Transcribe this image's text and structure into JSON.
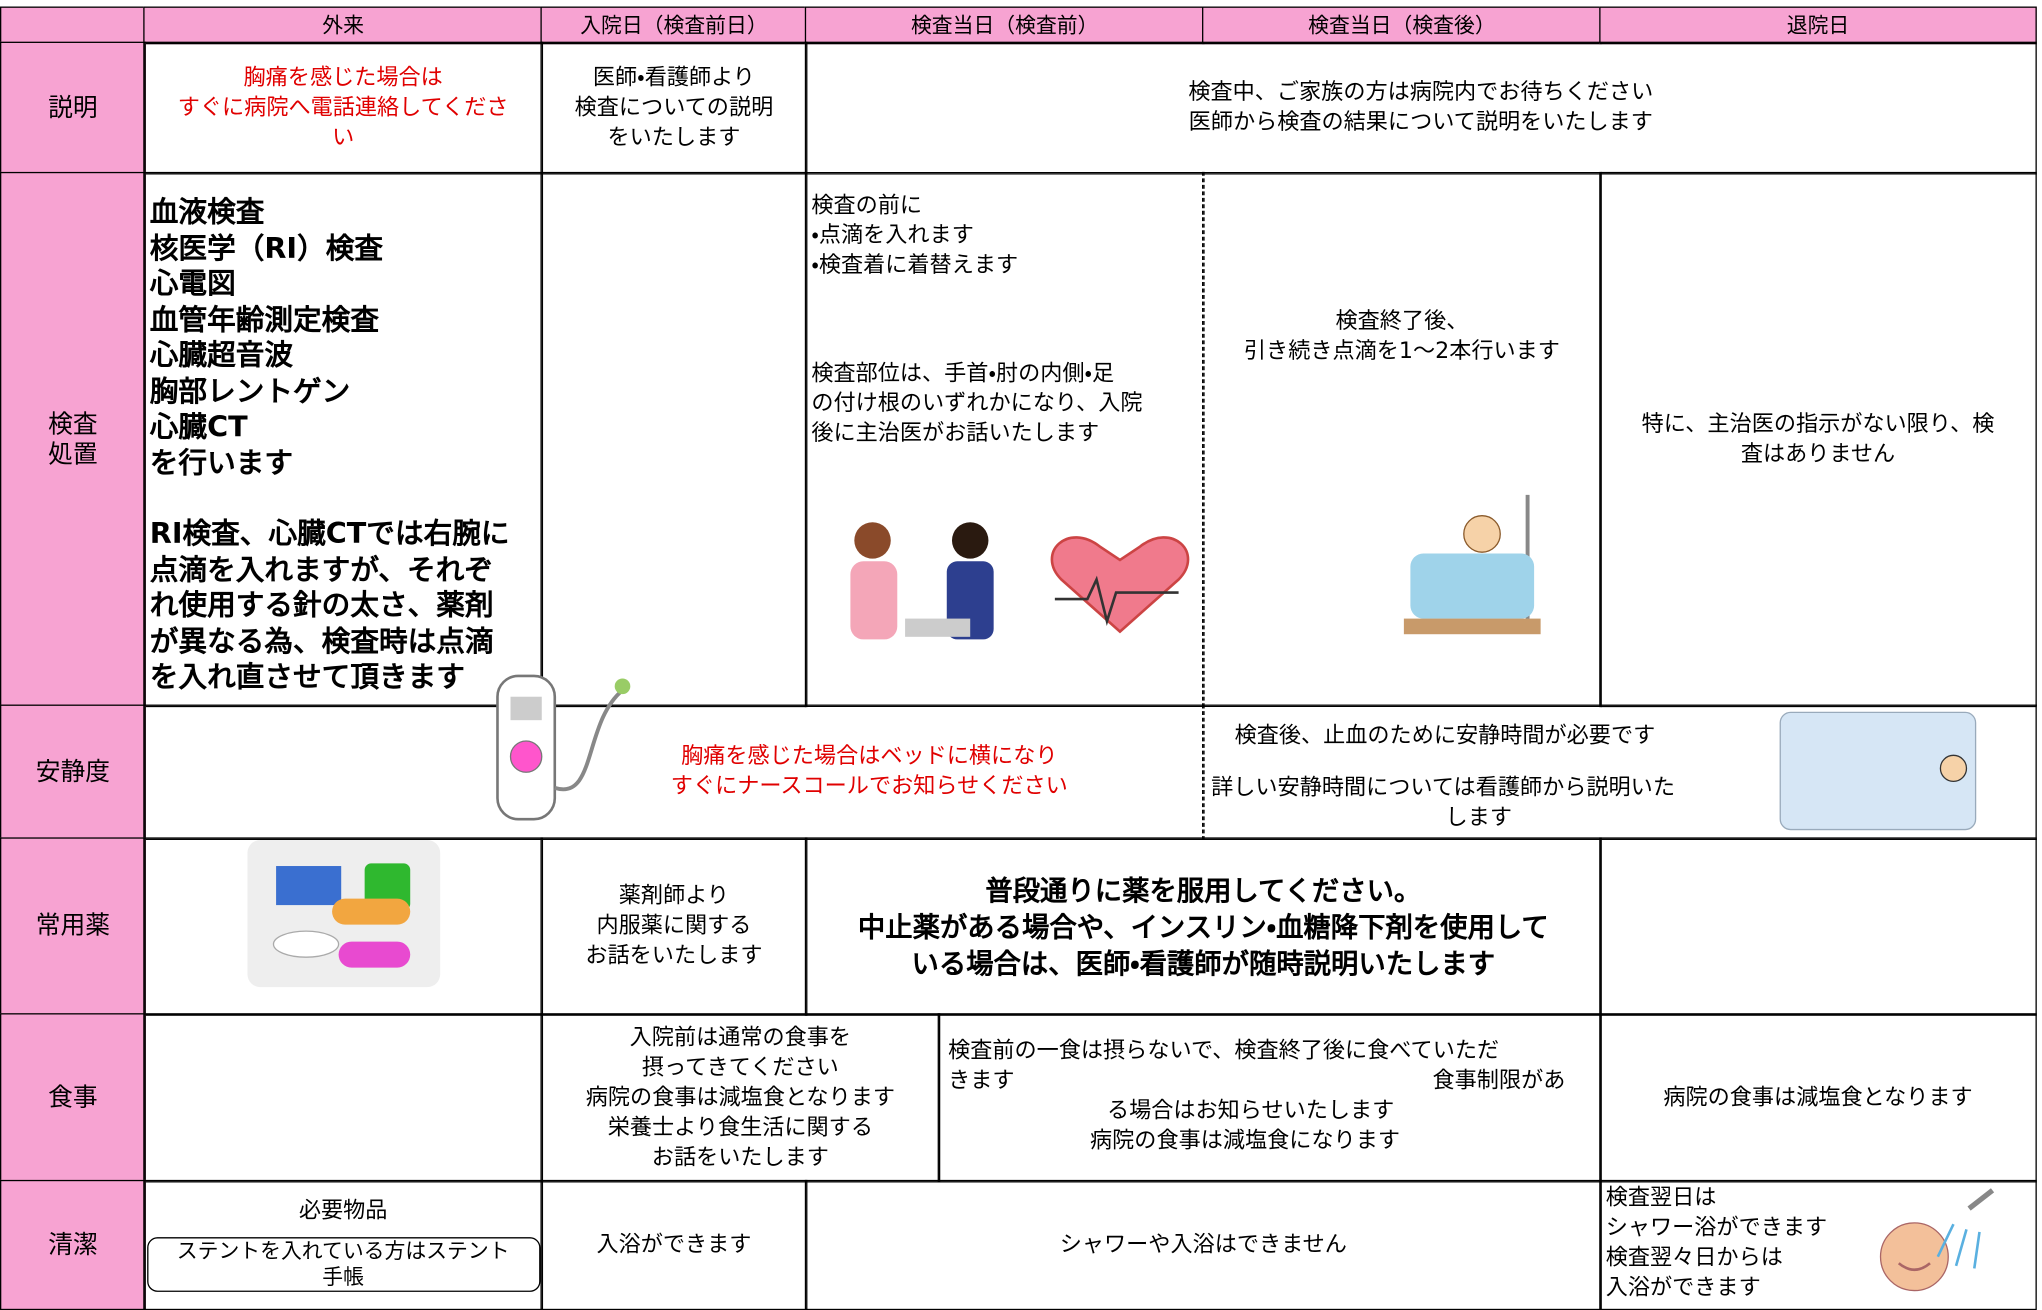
{
  "header": {
    "columns": [
      "外来",
      "入院日（検査前日）",
      "検査当日（検査前）",
      "検査当日（検査後）",
      "退院日"
    ]
  },
  "rows": [
    {
      "label": [
        "説明"
      ],
      "cells": [
        [
          "胸痛を感じた場合は",
          "すぐに病院へ電話連絡してくださ",
          "い"
        ],
        [
          "医師・看護師より",
          "検査についての説明",
          "をいたします"
        ],
        [
          "検査中、ご家族の方は病院内でお待ちください",
          "医師から検査の結果について説明をいたします"
        ]
      ]
    },
    {
      "label": [
        "検査",
        "処置"
      ],
      "cells": [
        [
          "血液検査",
          "核医学（RI）検査",
          "心電図",
          "血管年齢測定検査",
          "心臓超音波",
          "胸部レントゲン",
          "心臓CT",
          "を行います",
          "RI検査、心臓CTでは右腕に",
          "点滴を入れますが、それぞ",
          "れ使用する針の太さ、薬剤",
          "が異なる為、検査時は点滴",
          "を入れ直させて頂きます"
        ],
        [
          "検査の前に",
          "・点滴を入れます",
          "・検査着に着替えます",
          "検査部位は、手首・肘の内側・足",
          "の付け根のいずれかになり、入院",
          "後に主治医がお話いたします"
        ],
        [
          "検査終了後、",
          "引き続き点滴を1～2本行います"
        ],
        [
          "特に、主治医の指示がない限り、検",
          "査はありません"
        ]
      ]
    },
    {
      "label": [
        "安静度"
      ],
      "cells": [
        [
          "胸痛を感じた場合はベッドに横になり",
          "すぐにナースコールでお知らせください"
        ],
        [
          "検査後、止血のために安静時間が必要です",
          "詳しい安静時間については看護師から説明いた",
          "します"
        ]
      ]
    },
    {
      "label": [
        "常用薬"
      ],
      "cells": [
        [
          "薬剤師より",
          "内服薬に関する",
          "お話をいたします"
        ],
        [
          "普段通りに薬を服用してください。",
          "中止薬がある場合や、インスリン・血糖降下剤を使用して",
          "いる場合は、医師・看護師が随時説明いたします"
        ]
      ]
    },
    {
      "label": [
        "食事"
      ],
      "cells": [
        [
          "入院前は通常の食事を",
          "摂ってきてください",
          "病院の食事は減塩食となります",
          "栄養士より食生活に関する",
          "お話をいたします"
        ],
        [
          "検査前の一食は摂らないで、検査終了後に食べていただ",
          "きます",
          "食事制限があ",
          "る場合はお知らせいたします",
          "病院の食事は減塩食になります"
        ],
        [
          "病院の食事は減塩食となります"
        ]
      ]
    },
    {
      "label": [
        "清潔"
      ],
      "cells": [
        [
          "必要物品"
        ],
        [
          "ステントを入れている方はステント",
          "手帳"
        ],
        [
          "入浴ができます"
        ],
        [
          "シャワーや入浴はできません"
        ],
        [
          "検査翌日は",
          "シャワー浴ができます",
          "検査翌々日からは",
          "入浴ができます"
        ]
      ]
    }
  ]
}
